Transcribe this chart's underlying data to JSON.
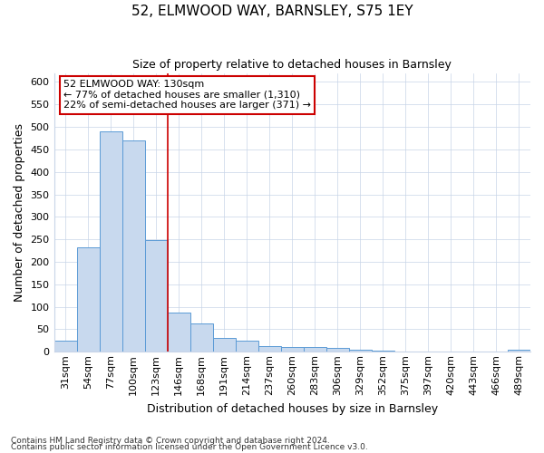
{
  "title": "52, ELMWOOD WAY, BARNSLEY, S75 1EY",
  "subtitle": "Size of property relative to detached houses in Barnsley",
  "xlabel": "Distribution of detached houses by size in Barnsley",
  "ylabel": "Number of detached properties",
  "footnote1": "Contains HM Land Registry data © Crown copyright and database right 2024.",
  "footnote2": "Contains public sector information licensed under the Open Government Licence v3.0.",
  "annotation_title": "52 ELMWOOD WAY: 130sqm",
  "annotation_line1": "← 77% of detached houses are smaller (1,310)",
  "annotation_line2": "22% of semi-detached houses are larger (371) →",
  "bar_color": "#c8d9ee",
  "bar_edge_color": "#5b9bd5",
  "vline_color": "#cc0000",
  "annotation_box_edgecolor": "#cc0000",
  "grid_color": "#c8d4e8",
  "categories": [
    "31sqm",
    "54sqm",
    "77sqm",
    "100sqm",
    "123sqm",
    "146sqm",
    "168sqm",
    "191sqm",
    "214sqm",
    "237sqm",
    "260sqm",
    "283sqm",
    "306sqm",
    "329sqm",
    "352sqm",
    "375sqm",
    "397sqm",
    "420sqm",
    "443sqm",
    "466sqm",
    "489sqm"
  ],
  "values": [
    25,
    232,
    490,
    470,
    248,
    88,
    62,
    30,
    25,
    13,
    11,
    10,
    8,
    4,
    2,
    1,
    1,
    0,
    0,
    0,
    5
  ],
  "ylim": [
    0,
    620
  ],
  "yticks": [
    0,
    50,
    100,
    150,
    200,
    250,
    300,
    350,
    400,
    450,
    500,
    550,
    600
  ],
  "vline_x": 4.5,
  "figsize": [
    6.0,
    5.0
  ],
  "dpi": 100,
  "bg_color": "#ffffff",
  "title_fontsize": 11,
  "subtitle_fontsize": 9,
  "ylabel_fontsize": 9,
  "xlabel_fontsize": 9,
  "tick_fontsize": 8,
  "annotation_fontsize": 8,
  "footnote_fontsize": 6.5
}
